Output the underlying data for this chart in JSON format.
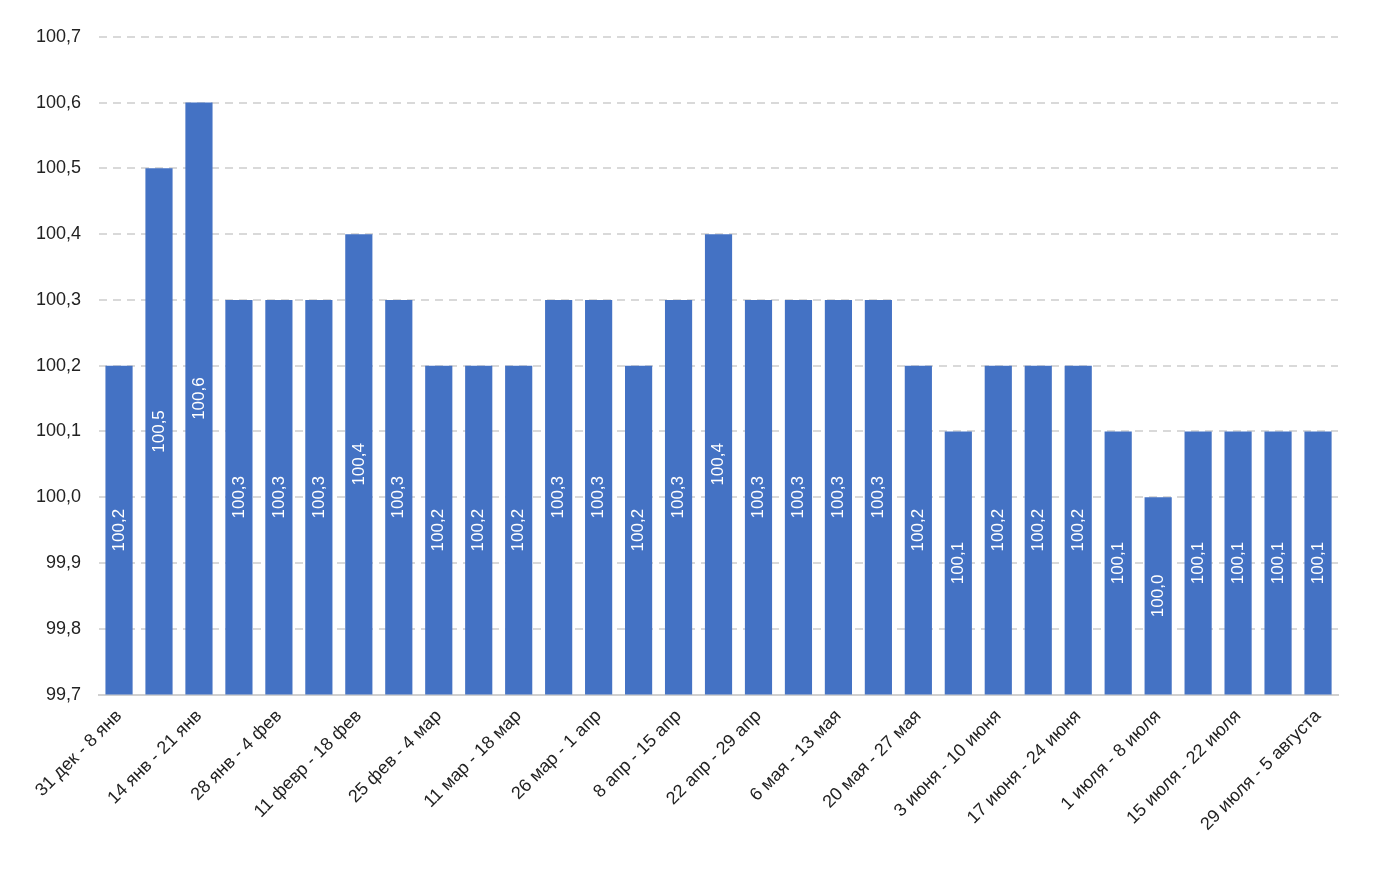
{
  "chart_data": {
    "type": "bar",
    "categories": [
      "31 дек - 8 янв",
      null,
      "14 янв - 21 янв",
      null,
      "28 янв - 4 фев",
      null,
      "11 февр - 18 фев",
      null,
      "25 фев - 4 мар",
      null,
      "11 мар - 18 мар",
      null,
      "26 мар - 1 апр",
      null,
      "8 апр - 15 апр",
      null,
      "22 апр - 29 апр",
      null,
      "6 мая - 13 мая",
      null,
      "20 мая - 27 мая",
      null,
      "3 июня - 10 июня",
      null,
      "17 июня - 24 июня",
      null,
      "1 июля - 8 июля",
      null,
      "15 июля - 22 июля",
      null,
      "29 июля - 5 августа"
    ],
    "values": [
      100.2,
      100.5,
      100.6,
      100.3,
      100.3,
      100.3,
      100.4,
      100.3,
      100.2,
      100.2,
      100.2,
      100.3,
      100.3,
      100.2,
      100.3,
      100.4,
      100.3,
      100.3,
      100.3,
      100.3,
      100.2,
      100.1,
      100.2,
      100.2,
      100.2,
      100.1,
      100.0,
      100.1,
      100.1,
      100.1,
      100.1
    ],
    "value_labels": [
      "100,2",
      "100,5",
      "100,6",
      "100,3",
      "100,3",
      "100,3",
      "100,4",
      "100,3",
      "100,2",
      "100,2",
      "100,2",
      "100,3",
      "100,3",
      "100,2",
      "100,3",
      "100,4",
      "100,3",
      "100,3",
      "100,3",
      "100,3",
      "100,2",
      "100,1",
      "100,2",
      "100,2",
      "100,2",
      "100,1",
      "100,0",
      "100,1",
      "100,1",
      "100,1",
      "100,1"
    ],
    "color": "#4472c4",
    "ylim": [
      99.7,
      100.7
    ],
    "yticks": [
      {
        "value": 99.7,
        "label": "99,7"
      },
      {
        "value": 99.8,
        "label": "99,8"
      },
      {
        "value": 99.9,
        "label": "99,9"
      },
      {
        "value": 100.0,
        "label": "100,0"
      },
      {
        "value": 100.1,
        "label": "100,1"
      },
      {
        "value": 100.2,
        "label": "100,2"
      },
      {
        "value": 100.3,
        "label": "100,3"
      },
      {
        "value": 100.4,
        "label": "100,4"
      },
      {
        "value": 100.5,
        "label": "100,5"
      },
      {
        "value": 100.6,
        "label": "100,6"
      },
      {
        "value": 100.7,
        "label": "100,7"
      }
    ],
    "grid": "y",
    "legend": false
  }
}
